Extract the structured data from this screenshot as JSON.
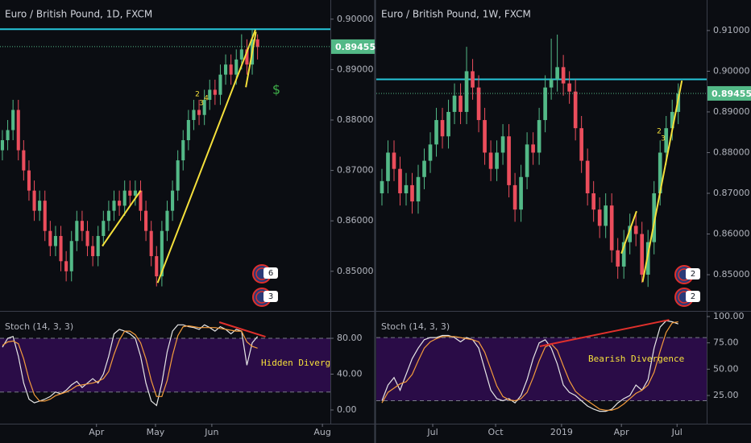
{
  "chart_data": [
    {
      "type": "candlestick",
      "title": "Euro / British Pound, 1D, FXCM",
      "up_color": "#53b987",
      "down_color": "#eb4d5c",
      "xlim": [
        -0.45,
        61.7
      ],
      "xticks": [
        {
          "value": 17.7,
          "label": "Apr"
        },
        {
          "value": 28.8,
          "label": "May"
        },
        {
          "value": 39.4,
          "label": "Jun"
        },
        {
          "value": 60.2,
          "label": "Aug"
        }
      ],
      "ylim": [
        0.8423,
        0.9038
      ],
      "yticks": [
        {
          "value": 0.85,
          "label": "0.85000"
        },
        {
          "value": 0.86,
          "label": "0.86000"
        },
        {
          "value": 0.87,
          "label": "0.87000"
        },
        {
          "value": 0.88,
          "label": "0.88000"
        },
        {
          "value": 0.89,
          "label": "0.89000"
        },
        {
          "value": 0.9,
          "label": "0.90000"
        }
      ],
      "open": [
        0.874,
        0.876,
        0.878,
        0.882,
        0.874,
        0.87,
        0.866,
        0.862,
        0.864,
        0.858,
        0.855,
        0.857,
        0.852,
        0.85,
        0.856,
        0.86,
        0.858,
        0.855,
        0.853,
        0.857,
        0.86,
        0.862,
        0.864,
        0.863,
        0.866,
        0.865,
        0.866,
        0.862,
        0.858,
        0.853,
        0.849,
        0.858,
        0.862,
        0.866,
        0.872,
        0.876,
        0.88,
        0.882,
        0.881,
        0.884,
        0.886,
        0.885,
        0.889,
        0.891,
        0.889,
        0.892,
        0.894,
        0.891,
        0.896
      ],
      "high": [
        0.878,
        0.88,
        0.884,
        0.884,
        0.876,
        0.872,
        0.868,
        0.866,
        0.866,
        0.86,
        0.859,
        0.859,
        0.854,
        0.858,
        0.862,
        0.862,
        0.86,
        0.857,
        0.859,
        0.862,
        0.864,
        0.866,
        0.866,
        0.868,
        0.868,
        0.868,
        0.868,
        0.864,
        0.86,
        0.855,
        0.86,
        0.864,
        0.868,
        0.874,
        0.878,
        0.882,
        0.884,
        0.884,
        0.886,
        0.888,
        0.888,
        0.891,
        0.893,
        0.893,
        0.894,
        0.897,
        0.896,
        0.898,
        0.897
      ],
      "low": [
        0.872,
        0.874,
        0.876,
        0.872,
        0.868,
        0.864,
        0.86,
        0.86,
        0.856,
        0.853,
        0.853,
        0.85,
        0.848,
        0.848,
        0.854,
        0.856,
        0.853,
        0.851,
        0.851,
        0.855,
        0.858,
        0.86,
        0.861,
        0.861,
        0.863,
        0.863,
        0.86,
        0.856,
        0.851,
        0.847,
        0.847,
        0.856,
        0.86,
        0.864,
        0.87,
        0.874,
        0.878,
        0.879,
        0.879,
        0.882,
        0.883,
        0.883,
        0.887,
        0.887,
        0.887,
        0.89,
        0.889,
        0.889,
        0.892
      ],
      "close": [
        0.876,
        0.878,
        0.882,
        0.874,
        0.87,
        0.866,
        0.862,
        0.864,
        0.858,
        0.855,
        0.857,
        0.852,
        0.85,
        0.856,
        0.86,
        0.858,
        0.855,
        0.853,
        0.857,
        0.86,
        0.862,
        0.864,
        0.863,
        0.866,
        0.865,
        0.866,
        0.862,
        0.858,
        0.853,
        0.849,
        0.858,
        0.862,
        0.866,
        0.872,
        0.876,
        0.88,
        0.882,
        0.881,
        0.884,
        0.886,
        0.885,
        0.889,
        0.891,
        0.889,
        0.892,
        0.894,
        0.891,
        0.896,
        0.8945
      ],
      "level": {
        "value": 0.898,
        "color": "#26c6da"
      },
      "price_line": {
        "value": 0.89455,
        "label": "0.89455",
        "color": "#53b987"
      },
      "trend_lines": [
        {
          "x": [
            18.8,
            26
          ],
          "y": [
            0.855,
            0.866
          ],
          "color": "#f5e03b"
        },
        {
          "x": [
            29.2,
            47.6
          ],
          "y": [
            0.8477,
            0.8979
          ],
          "color": "#f5e03b"
        },
        {
          "x": [
            45.8,
            47.7
          ],
          "y": [
            0.8865,
            0.8975
          ],
          "color": "#f5e03b"
        }
      ],
      "annotations": [
        {
          "text": "$",
          "color": "#3fae49"
        },
        {
          "text": "2",
          "color": "#f5e03b"
        },
        {
          "text": "3",
          "color": "#f5e03b"
        },
        {
          "text": "4",
          "color": "#f5e03b"
        }
      ],
      "badges": [
        "6",
        "3"
      ],
      "indicator": {
        "type": "line",
        "title": "Stoch (14, 3, 3)",
        "ylim": [
          -14.4,
          109.7
        ],
        "yticks": [
          {
            "value": 0,
            "label": "0.00"
          },
          {
            "value": 40,
            "label": "40.00"
          },
          {
            "value": 80,
            "label": "80.00"
          }
        ],
        "bands": [
          20,
          80
        ],
        "band_color": "#2a0c47",
        "series": [
          {
            "color": "#e6e6e6",
            "values": [
              70,
              80,
              82,
              60,
              30,
              12,
              8,
              10,
              12,
              15,
              20,
              18,
              22,
              28,
              32,
              25,
              30,
              35,
              30,
              40,
              60,
              85,
              90,
              88,
              85,
              80,
              60,
              30,
              10,
              5,
              30,
              65,
              88,
              95,
              95,
              93,
              92,
              90,
              95,
              92,
              88,
              93,
              90,
              85,
              90,
              88,
              50,
              75,
              82
            ]
          },
          {
            "color": "#f39c3c",
            "values": [
              72,
              76,
              77,
              74,
              57,
              34,
              17,
              10,
              10,
              12,
              16,
              18,
              20,
              23,
              27,
              28,
              29,
              30,
              32,
              35,
              43,
              62,
              78,
              88,
              88,
              84,
              75,
              57,
              33,
              15,
              15,
              33,
              61,
              83,
              93,
              94,
              93,
              92,
              92,
              92,
              92,
              91,
              90,
              89,
              88,
              88,
              76,
              71,
              69
            ]
          }
        ],
        "trend_lines": [
          {
            "x": [
              40.8,
              49.5
            ],
            "y": [
              98,
              81.8
            ],
            "color": "#e0302c"
          }
        ],
        "annotations": [
          {
            "text": "Hidden Diverge",
            "color": "#f5e03b"
          }
        ]
      }
    },
    {
      "type": "candlestick",
      "title": "Euro / British Pound, 1W, FXCM",
      "up_color": "#53b987",
      "down_color": "#eb4d5c",
      "xlim": [
        -0.93,
        53.7
      ],
      "xticks": [
        {
          "value": 8.4,
          "label": "Jul"
        },
        {
          "value": 18.8,
          "label": "Oct"
        },
        {
          "value": 29.7,
          "label": "2019"
        },
        {
          "value": 39.6,
          "label": "Apr"
        },
        {
          "value": 48.8,
          "label": "Jul"
        }
      ],
      "ylim": [
        0.8413,
        0.9175
      ],
      "yticks": [
        {
          "value": 0.85,
          "label": "0.85000"
        },
        {
          "value": 0.86,
          "label": "0.86000"
        },
        {
          "value": 0.87,
          "label": "0.87000"
        },
        {
          "value": 0.88,
          "label": "0.88000"
        },
        {
          "value": 0.89,
          "label": "0.89000"
        },
        {
          "value": 0.9,
          "label": "0.90000"
        },
        {
          "value": 0.91,
          "label": "0.91000"
        }
      ],
      "open": [
        0.87,
        0.873,
        0.88,
        0.876,
        0.87,
        0.872,
        0.868,
        0.874,
        0.878,
        0.882,
        0.888,
        0.884,
        0.89,
        0.894,
        0.89,
        0.9,
        0.896,
        0.888,
        0.88,
        0.876,
        0.88,
        0.884,
        0.872,
        0.866,
        0.874,
        0.882,
        0.88,
        0.888,
        0.896,
        0.898,
        0.901,
        0.897,
        0.895,
        0.886,
        0.878,
        0.87,
        0.866,
        0.862,
        0.867,
        0.856,
        0.852,
        0.858,
        0.862,
        0.86,
        0.85,
        0.858,
        0.87,
        0.88,
        0.886,
        0.89
      ],
      "high": [
        0.876,
        0.883,
        0.883,
        0.879,
        0.875,
        0.875,
        0.877,
        0.881,
        0.885,
        0.891,
        0.891,
        0.893,
        0.897,
        0.897,
        0.906,
        0.903,
        0.899,
        0.891,
        0.883,
        0.883,
        0.887,
        0.887,
        0.875,
        0.877,
        0.885,
        0.885,
        0.891,
        0.899,
        0.908,
        0.909,
        0.904,
        0.9,
        0.898,
        0.889,
        0.881,
        0.873,
        0.869,
        0.87,
        0.87,
        0.859,
        0.861,
        0.865,
        0.865,
        0.863,
        0.861,
        0.873,
        0.883,
        0.889,
        0.893,
        0.897
      ],
      "low": [
        0.867,
        0.87,
        0.873,
        0.867,
        0.867,
        0.865,
        0.865,
        0.871,
        0.875,
        0.879,
        0.881,
        0.881,
        0.887,
        0.887,
        0.887,
        0.893,
        0.885,
        0.877,
        0.873,
        0.873,
        0.877,
        0.869,
        0.863,
        0.863,
        0.871,
        0.877,
        0.877,
        0.885,
        0.893,
        0.895,
        0.894,
        0.892,
        0.883,
        0.875,
        0.867,
        0.863,
        0.859,
        0.859,
        0.853,
        0.849,
        0.849,
        0.855,
        0.857,
        0.848,
        0.847,
        0.855,
        0.867,
        0.877,
        0.883,
        0.887
      ],
      "close": [
        0.873,
        0.88,
        0.876,
        0.87,
        0.872,
        0.868,
        0.874,
        0.878,
        0.882,
        0.888,
        0.884,
        0.89,
        0.894,
        0.89,
        0.9,
        0.896,
        0.888,
        0.88,
        0.876,
        0.88,
        0.884,
        0.872,
        0.866,
        0.874,
        0.882,
        0.88,
        0.888,
        0.896,
        0.898,
        0.901,
        0.897,
        0.895,
        0.886,
        0.878,
        0.87,
        0.866,
        0.862,
        0.867,
        0.856,
        0.852,
        0.858,
        0.862,
        0.86,
        0.85,
        0.858,
        0.87,
        0.88,
        0.886,
        0.89,
        0.8945
      ],
      "level": {
        "value": 0.898,
        "color": "#26c6da"
      },
      "price_line": {
        "value": 0.89455,
        "label": "0.89455",
        "color": "#53b987"
      },
      "trend_lines": [
        {
          "x": [
            39.6,
            42.1
          ],
          "y": [
            0.8552,
            0.8656
          ],
          "color": "#f5e03b"
        },
        {
          "x": [
            43.1,
            49.6
          ],
          "y": [
            0.8482,
            0.8977
          ],
          "color": "#f5e03b"
        }
      ],
      "annotations": [
        {
          "text": "2",
          "color": "#f5e03b"
        },
        {
          "text": "3",
          "color": "#f5e03b"
        }
      ],
      "badges": [
        "2",
        "2"
      ],
      "indicator": {
        "type": "line",
        "title": "Stoch (14, 3, 3)",
        "ylim": [
          -1,
          104.6
        ],
        "yticks": [
          {
            "value": 25,
            "label": "25.00"
          },
          {
            "value": 50,
            "label": "50.00"
          },
          {
            "value": 75,
            "label": "75.00"
          },
          {
            "value": 100,
            "label": "100.00"
          }
        ],
        "bands": [
          20,
          80
        ],
        "band_color": "#2a0c47",
        "series": [
          {
            "color": "#e6e6e6",
            "values": [
              20,
              35,
              42,
              30,
              45,
              60,
              70,
              78,
              80,
              80,
              82,
              82,
              80,
              76,
              80,
              78,
              70,
              50,
              30,
              22,
              20,
              22,
              18,
              25,
              40,
              60,
              75,
              78,
              70,
              55,
              35,
              28,
              25,
              20,
              15,
              12,
              10,
              10,
              12,
              18,
              22,
              25,
              35,
              30,
              40,
              70,
              90,
              96,
              95,
              93
            ]
          },
          {
            "color": "#f39c3c",
            "values": [
              18,
              28,
              32,
              36,
              38,
              45,
              58,
              70,
              76,
              79,
              81,
              81,
              81,
              80,
              79,
              78,
              76,
              66,
              50,
              34,
              24,
              21,
              20,
              22,
              28,
              42,
              58,
              71,
              74,
              68,
              53,
              39,
              29,
              24,
              20,
              16,
              12,
              11,
              11,
              13,
              17,
              22,
              27,
              30,
              35,
              47,
              67,
              85,
              94,
              95
            ]
          }
        ],
        "trend_lines": [
          {
            "x": [
              26.1,
              47.5
            ],
            "y": [
              71.7,
              96.9
            ],
            "color": "#e0302c"
          }
        ],
        "annotations": [
          {
            "text": "Bearish Divergence",
            "color": "#f5e03b"
          }
        ]
      }
    }
  ]
}
